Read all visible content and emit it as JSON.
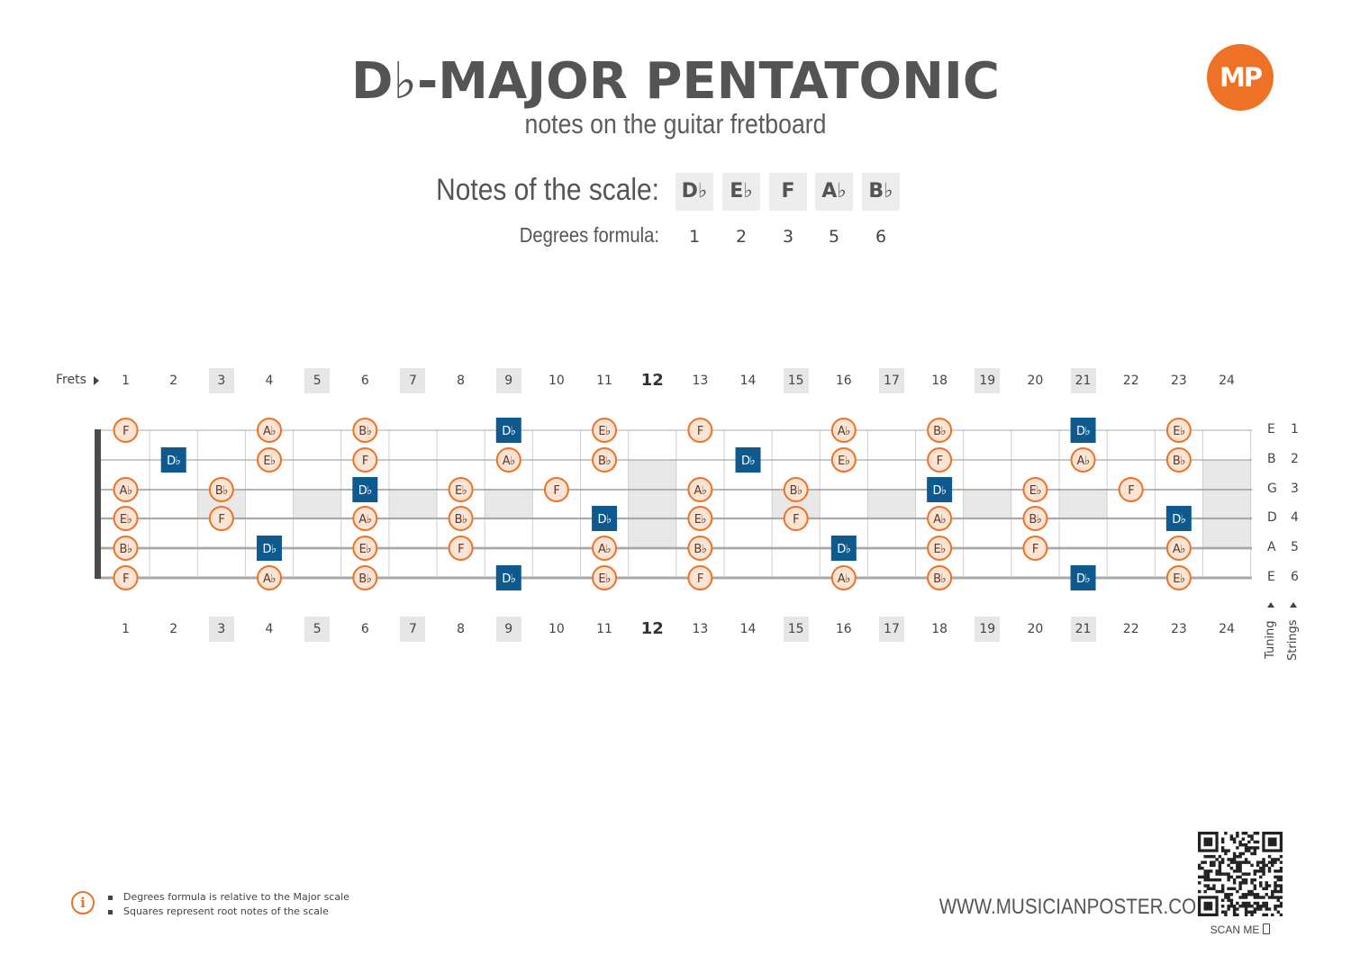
{
  "header": {
    "title": "D♭-MAJOR PENTATONIC",
    "subtitle": "notes on the guitar fretboard",
    "logo_text": "MP"
  },
  "scale": {
    "notes_label": "Notes of the scale:",
    "degrees_label": "Degrees formula:",
    "notes": [
      "D♭",
      "E♭",
      "F",
      "A♭",
      "B♭"
    ],
    "degrees": [
      "1",
      "2",
      "3",
      "5",
      "6"
    ]
  },
  "fretboard": {
    "frets_label": "Frets",
    "fret_numbers": [
      "1",
      "2",
      "3",
      "4",
      "5",
      "6",
      "7",
      "8",
      "9",
      "10",
      "11",
      "12",
      "13",
      "14",
      "15",
      "16",
      "17",
      "18",
      "19",
      "20",
      "21",
      "22",
      "23",
      "24"
    ],
    "marker_frets": [
      3,
      5,
      7,
      9,
      15,
      17,
      19,
      21
    ],
    "bold_frets": [
      12
    ],
    "tuning": [
      "E",
      "B",
      "G",
      "D",
      "A",
      "E"
    ],
    "string_numbers": [
      "1",
      "2",
      "3",
      "4",
      "5",
      "6"
    ],
    "tuning_label": "Tuning",
    "strings_label": "Strings",
    "root": "D♭",
    "notes": [
      [
        {
          "f": 1,
          "n": "F"
        },
        {
          "f": 4,
          "n": "A♭"
        },
        {
          "f": 6,
          "n": "B♭"
        },
        {
          "f": 9,
          "n": "D♭"
        },
        {
          "f": 11,
          "n": "E♭"
        },
        {
          "f": 13,
          "n": "F"
        },
        {
          "f": 16,
          "n": "A♭"
        },
        {
          "f": 18,
          "n": "B♭"
        },
        {
          "f": 21,
          "n": "D♭"
        },
        {
          "f": 23,
          "n": "E♭"
        }
      ],
      [
        {
          "f": 2,
          "n": "D♭"
        },
        {
          "f": 4,
          "n": "E♭"
        },
        {
          "f": 6,
          "n": "F"
        },
        {
          "f": 9,
          "n": "A♭"
        },
        {
          "f": 11,
          "n": "B♭"
        },
        {
          "f": 14,
          "n": "D♭"
        },
        {
          "f": 16,
          "n": "E♭"
        },
        {
          "f": 18,
          "n": "F"
        },
        {
          "f": 21,
          "n": "A♭"
        },
        {
          "f": 23,
          "n": "B♭"
        }
      ],
      [
        {
          "f": 1,
          "n": "A♭"
        },
        {
          "f": 3,
          "n": "B♭"
        },
        {
          "f": 6,
          "n": "D♭"
        },
        {
          "f": 8,
          "n": "E♭"
        },
        {
          "f": 10,
          "n": "F"
        },
        {
          "f": 13,
          "n": "A♭"
        },
        {
          "f": 15,
          "n": "B♭"
        },
        {
          "f": 18,
          "n": "D♭"
        },
        {
          "f": 20,
          "n": "E♭"
        },
        {
          "f": 22,
          "n": "F"
        }
      ],
      [
        {
          "f": 1,
          "n": "E♭"
        },
        {
          "f": 3,
          "n": "F"
        },
        {
          "f": 6,
          "n": "A♭"
        },
        {
          "f": 8,
          "n": "B♭"
        },
        {
          "f": 11,
          "n": "D♭"
        },
        {
          "f": 13,
          "n": "E♭"
        },
        {
          "f": 15,
          "n": "F"
        },
        {
          "f": 18,
          "n": "A♭"
        },
        {
          "f": 20,
          "n": "B♭"
        },
        {
          "f": 23,
          "n": "D♭"
        }
      ],
      [
        {
          "f": 1,
          "n": "B♭"
        },
        {
          "f": 4,
          "n": "D♭"
        },
        {
          "f": 6,
          "n": "E♭"
        },
        {
          "f": 8,
          "n": "F"
        },
        {
          "f": 11,
          "n": "A♭"
        },
        {
          "f": 13,
          "n": "B♭"
        },
        {
          "f": 16,
          "n": "D♭"
        },
        {
          "f": 18,
          "n": "E♭"
        },
        {
          "f": 20,
          "n": "F"
        },
        {
          "f": 23,
          "n": "A♭"
        }
      ],
      [
        {
          "f": 1,
          "n": "F"
        },
        {
          "f": 4,
          "n": "A♭"
        },
        {
          "f": 6,
          "n": "B♭"
        },
        {
          "f": 9,
          "n": "D♭"
        },
        {
          "f": 11,
          "n": "E♭"
        },
        {
          "f": 13,
          "n": "F"
        },
        {
          "f": 16,
          "n": "A♭"
        },
        {
          "f": 18,
          "n": "B♭"
        },
        {
          "f": 21,
          "n": "D♭"
        },
        {
          "f": 23,
          "n": "E♭"
        }
      ]
    ]
  },
  "footer": {
    "info": [
      "Degrees formula is relative to the Major scale",
      "Squares represent root notes of the scale"
    ],
    "website": "WWW.MUSICIANPOSTER.COM",
    "scan_me": "SCAN ME"
  },
  "colors": {
    "accent": "#ef7125",
    "note_fill": "#fce4d4",
    "root_fill": "#0e5a8e",
    "text": "#555555",
    "inlay": "#e8e8e8"
  }
}
